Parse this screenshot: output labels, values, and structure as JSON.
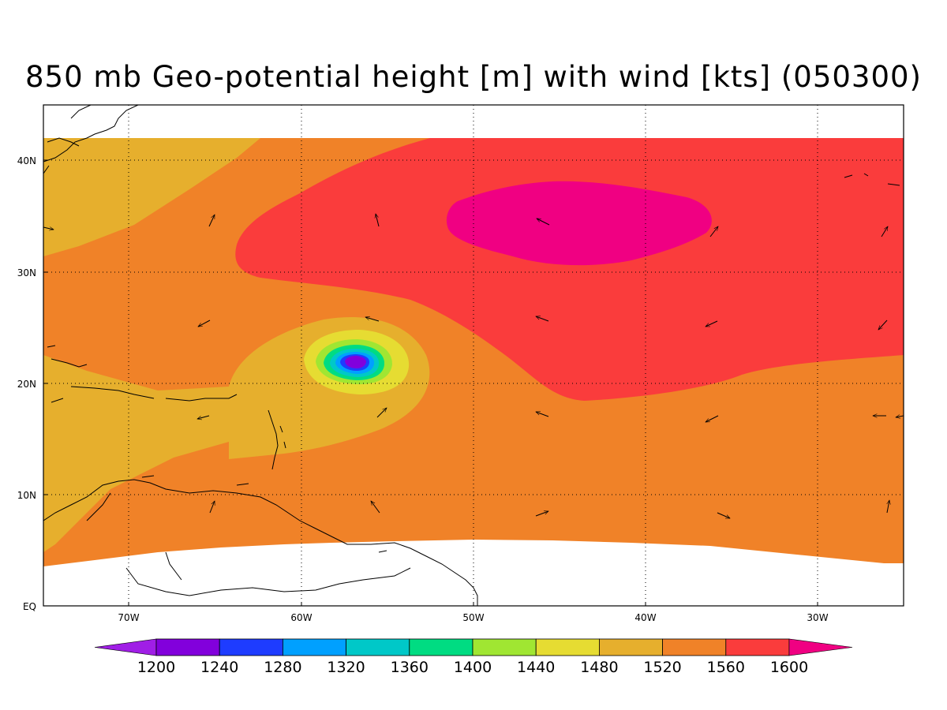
{
  "title": "850 mb Geo-potential height [m] with wind [kts] (050300)",
  "axes": {
    "lon_ticks": [
      "70W",
      "60W",
      "50W",
      "40W",
      "30W"
    ],
    "lat_ticks": [
      "EQ",
      "10N",
      "20N",
      "30N",
      "40N"
    ]
  },
  "colorbar": {
    "levels": [
      "1200",
      "1240",
      "1280",
      "1320",
      "1360",
      "1400",
      "1440",
      "1480",
      "1520",
      "1560",
      "1600"
    ],
    "colors": [
      "#a01ee6",
      "#8200dc",
      "#1e3cff",
      "#00a0ff",
      "#00c8c8",
      "#00dc82",
      "#a0e632",
      "#e6dc32",
      "#e6af2d",
      "#f08228",
      "#fa3c3c",
      "#f00082"
    ]
  },
  "chart_data": {
    "type": "heatmap",
    "title": "850 mb Geo-potential height [m] with wind [kts] (050300)",
    "variable": "850 mb geopotential height",
    "units": "m",
    "xlim": [
      -75,
      -25
    ],
    "ylim": [
      0,
      45
    ],
    "levels": [
      1200,
      1240,
      1280,
      1320,
      1360,
      1400,
      1440,
      1480,
      1520,
      1560,
      1600
    ],
    "features": [
      {
        "name": "tropical low",
        "lon": -57,
        "lat": 22,
        "min_value": "<1240"
      },
      {
        "name": "subtropical high",
        "lon": -43.5,
        "lat": 34.5,
        "max_value": ">1600"
      }
    ]
  }
}
